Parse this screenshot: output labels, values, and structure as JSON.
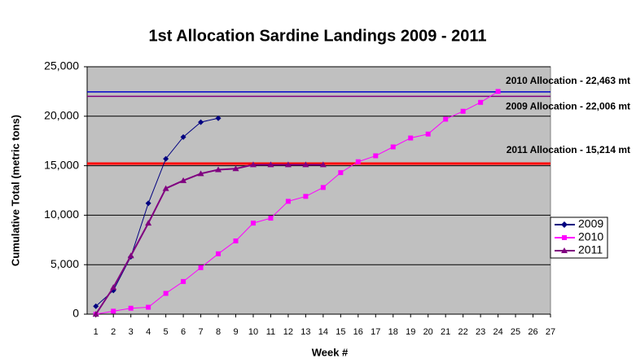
{
  "chart_data": {
    "type": "line",
    "title": "1st Allocation Sardine Landings 2009 - 2011",
    "x_label": "Week #",
    "y_label": "Cumulative Total (metric tons)",
    "xlim": [
      0.5,
      27
    ],
    "xticks": [
      1,
      2,
      3,
      4,
      5,
      6,
      7,
      8,
      9,
      10,
      11,
      12,
      13,
      14,
      15,
      16,
      17,
      18,
      19,
      20,
      21,
      22,
      23,
      24,
      25,
      26,
      27
    ],
    "ylim": [
      0,
      25000
    ],
    "yticks": [
      0,
      {
        "value": 5000,
        "label": "5,000"
      },
      {
        "value": 10000,
        "label": "10,000"
      },
      {
        "value": 15000,
        "label": "15,000"
      },
      {
        "value": 20000,
        "label": "20,000"
      },
      {
        "value": 25000,
        "label": "25,000"
      }
    ],
    "grid": true,
    "legend": "right",
    "series": [
      {
        "name": "2009",
        "color": "#000080",
        "marker": "diamond",
        "x": [
          1,
          2,
          3,
          4,
          5,
          6,
          7,
          8
        ],
        "values": [
          800,
          2400,
          5800,
          11200,
          15700,
          17900,
          19400,
          19800
        ]
      },
      {
        "name": "2010",
        "color": "#ff00ff",
        "marker": "square",
        "x": [
          1,
          2,
          3,
          4,
          5,
          6,
          7,
          8,
          9,
          10,
          11,
          12,
          13,
          14,
          15,
          16,
          17,
          18,
          19,
          20,
          21,
          22,
          23,
          24
        ],
        "values": [
          0,
          300,
          600,
          700,
          2100,
          3300,
          4700,
          6100,
          7400,
          9200,
          9700,
          11400,
          11900,
          12800,
          14300,
          15400,
          16000,
          16900,
          17800,
          18200,
          19700,
          20500,
          21400,
          22500
        ]
      },
      {
        "name": "2011",
        "color": "#800080",
        "marker": "triangle",
        "x": [
          1,
          2,
          3,
          4,
          5,
          6,
          7,
          8,
          9,
          10,
          11,
          12,
          13,
          14
        ],
        "values": [
          0,
          2700,
          5900,
          9200,
          12700,
          13500,
          14200,
          14600,
          14700,
          15100,
          15100,
          15100,
          15100,
          15100
        ]
      }
    ],
    "reference_lines": [
      {
        "value": 22463,
        "label": "2010 Allocation - 22,463 mt",
        "color": "#0000cc"
      },
      {
        "value": 22006,
        "label": "2009 Allocation - 22,006 mt",
        "color": "#800080"
      },
      {
        "value": 15214,
        "label": "2011 Allocation - 15,214 mt",
        "color": "#ff0000"
      }
    ]
  }
}
